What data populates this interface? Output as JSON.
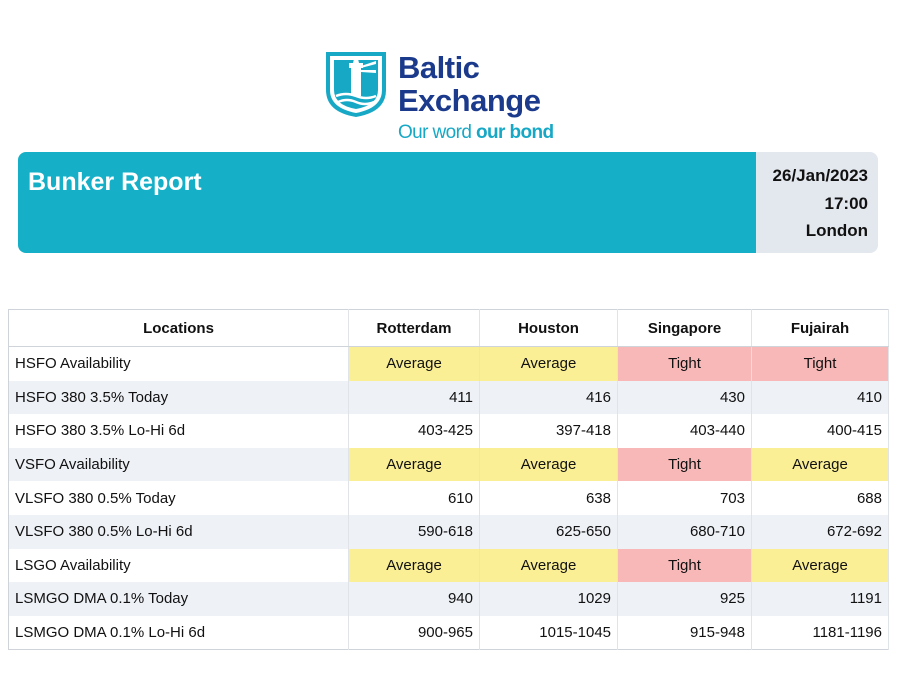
{
  "logo": {
    "name_line1": "Baltic",
    "name_line2": "Exchange",
    "tagline_regular": "Our word ",
    "tagline_bold": "our bond",
    "icon": "lighthouse-shield-icon"
  },
  "header": {
    "title": "Bunker Report",
    "date": "26/Jan/2023",
    "time": "17:00",
    "place": "London"
  },
  "colors": {
    "banner": "#15b0c7",
    "average": "#fbef96",
    "tight": "#f8b8b8",
    "brand_navy": "#1b3a8c"
  },
  "table": {
    "columns": [
      "Locations",
      "Rotterdam",
      "Houston",
      "Singapore",
      "Fujairah"
    ],
    "rows": [
      {
        "label": "HSFO Availability",
        "type": "avail",
        "values": [
          "Average",
          "Average",
          "Tight",
          "Tight"
        ]
      },
      {
        "label": "HSFO 380 3.5% Today",
        "type": "num",
        "values": [
          "411",
          "416",
          "430",
          "410"
        ]
      },
      {
        "label": "HSFO 380 3.5% Lo-Hi 6d",
        "type": "num",
        "values": [
          "403-425",
          "397-418",
          "403-440",
          "400-415"
        ]
      },
      {
        "label": "VSFO Availability",
        "type": "avail",
        "values": [
          "Average",
          "Average",
          "Tight",
          "Average"
        ]
      },
      {
        "label": "VLSFO 380 0.5% Today",
        "type": "num",
        "values": [
          "610",
          "638",
          "703",
          "688"
        ]
      },
      {
        "label": "VLSFO 380 0.5% Lo-Hi 6d",
        "type": "num",
        "values": [
          "590-618",
          "625-650",
          "680-710",
          "672-692"
        ]
      },
      {
        "label": "LSGO Availability",
        "type": "avail",
        "values": [
          "Average",
          "Average",
          "Tight",
          "Average"
        ]
      },
      {
        "label": "LSMGO DMA 0.1% Today",
        "type": "num",
        "values": [
          "940",
          "1029",
          "925",
          "1191"
        ]
      },
      {
        "label": "LSMGO DMA 0.1% Lo-Hi 6d",
        "type": "num",
        "values": [
          "900-965",
          "1015-1045",
          "915-948",
          "1181-1196"
        ]
      }
    ]
  }
}
